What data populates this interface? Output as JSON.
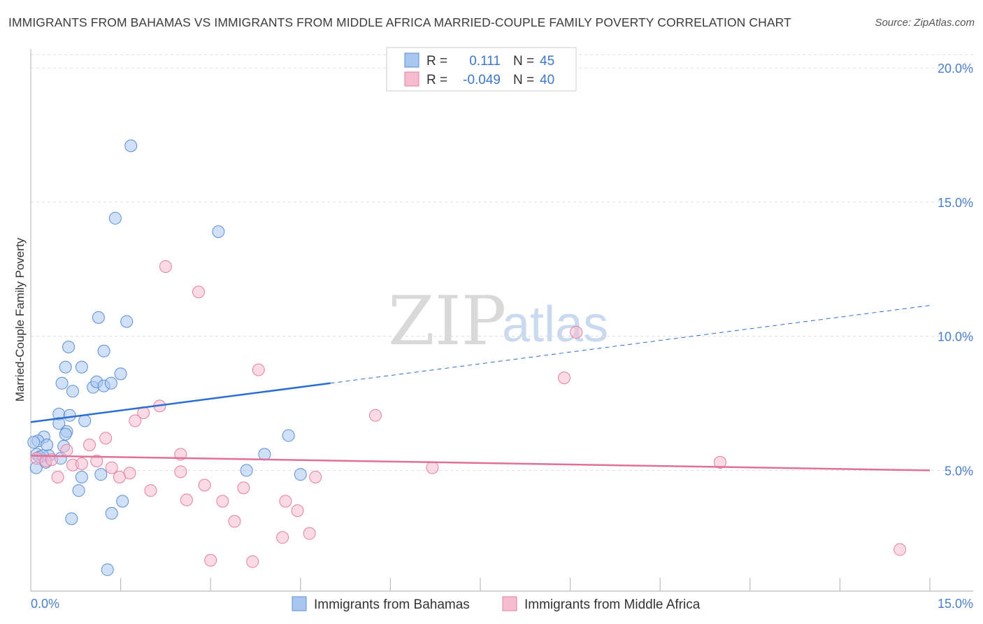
{
  "header": {
    "title": "IMMIGRANTS FROM BAHAMAS VS IMMIGRANTS FROM MIDDLE AFRICA MARRIED-COUPLE FAMILY POVERTY CORRELATION CHART",
    "source": "Source: ZipAtlas.com"
  },
  "watermark": {
    "zip": "ZIP",
    "atlas": "atlas"
  },
  "colors": {
    "blue_fill": "#a9c6ee",
    "blue_stroke": "#5b8fd6",
    "blue_line": "#2a6fd0",
    "pink_fill": "#f6bcd0",
    "pink_stroke": "#e57fa3",
    "pink_line": "#e0709a",
    "axis_label": "#4a7fc8",
    "grid": "#dddddd"
  },
  "legend": {
    "rows": [
      {
        "r_label": "R =",
        "r_value": "0.111",
        "n_label": "N =",
        "n_value": "45"
      },
      {
        "r_label": "R =",
        "r_value": "-0.049",
        "n_label": "N =",
        "n_value": "40"
      }
    ]
  },
  "bottom_legend": {
    "series1": "Immigrants from Bahamas",
    "series2": "Immigrants from Middle Africa"
  },
  "chart_data": {
    "type": "scatter",
    "title": "IMMIGRANTS FROM BAHAMAS VS IMMIGRANTS FROM MIDDLE AFRICA MARRIED-COUPLE FAMILY POVERTY CORRELATION CHART",
    "xlabel": "",
    "ylabel": "Married-Couple Family Poverty",
    "xlim": [
      0,
      15
    ],
    "ylim": [
      0.5,
      20.5
    ],
    "x_tick_labels": [
      "0.0%",
      "15.0%"
    ],
    "y_ticks": [
      5,
      10,
      15,
      20
    ],
    "y_tick_labels": [
      "5.0%",
      "10.0%",
      "15.0%",
      "20.0%"
    ],
    "series": [
      {
        "name": "Immigrants from Bahamas",
        "r": 0.111,
        "n": 45,
        "trend": {
          "x0": 0,
          "y0": 6.8,
          "x1": 5,
          "y1": 8.25,
          "x_dash_end": 15,
          "y_dash_end": 11.15
        },
        "points": [
          [
            1.67,
            17.1
          ],
          [
            1.41,
            14.4
          ],
          [
            3.13,
            13.9
          ],
          [
            1.13,
            10.7
          ],
          [
            1.6,
            10.55
          ],
          [
            0.63,
            9.6
          ],
          [
            1.22,
            9.45
          ],
          [
            0.58,
            8.85
          ],
          [
            0.85,
            8.85
          ],
          [
            1.5,
            8.6
          ],
          [
            0.52,
            8.25
          ],
          [
            1.04,
            8.1
          ],
          [
            1.1,
            8.3
          ],
          [
            1.22,
            8.15
          ],
          [
            1.34,
            8.25
          ],
          [
            0.7,
            7.95
          ],
          [
            0.47,
            7.1
          ],
          [
            0.65,
            7.05
          ],
          [
            0.9,
            6.85
          ],
          [
            0.47,
            6.75
          ],
          [
            0.6,
            6.45
          ],
          [
            0.58,
            6.35
          ],
          [
            0.22,
            6.25
          ],
          [
            0.12,
            6.1
          ],
          [
            0.05,
            6.05
          ],
          [
            0.27,
            5.95
          ],
          [
            0.55,
            5.9
          ],
          [
            4.3,
            6.3
          ],
          [
            0.1,
            5.6
          ],
          [
            0.3,
            5.55
          ],
          [
            0.5,
            5.45
          ],
          [
            0.15,
            5.5
          ],
          [
            3.9,
            5.6
          ],
          [
            3.6,
            5.0
          ],
          [
            0.09,
            5.1
          ],
          [
            0.85,
            4.75
          ],
          [
            1.17,
            4.85
          ],
          [
            4.5,
            4.85
          ],
          [
            0.8,
            4.25
          ],
          [
            1.53,
            3.85
          ],
          [
            1.35,
            3.4
          ],
          [
            0.68,
            3.2
          ],
          [
            1.28,
            1.3
          ],
          [
            0.2,
            5.55
          ],
          [
            0.25,
            5.3
          ]
        ]
      },
      {
        "name": "Immigrants from Middle Africa",
        "r": -0.049,
        "n": 40,
        "trend": {
          "x0": 0,
          "y0": 5.55,
          "x1": 15,
          "y1": 5.0
        },
        "points": [
          [
            2.25,
            12.6
          ],
          [
            2.8,
            11.65
          ],
          [
            9.1,
            10.15
          ],
          [
            3.8,
            8.75
          ],
          [
            8.9,
            8.45
          ],
          [
            5.75,
            7.05
          ],
          [
            2.15,
            7.4
          ],
          [
            1.88,
            7.15
          ],
          [
            1.74,
            6.85
          ],
          [
            1.25,
            6.2
          ],
          [
            0.98,
            5.95
          ],
          [
            0.6,
            5.75
          ],
          [
            2.5,
            5.6
          ],
          [
            1.1,
            5.35
          ],
          [
            0.1,
            5.45
          ],
          [
            0.25,
            5.35
          ],
          [
            0.35,
            5.4
          ],
          [
            0.7,
            5.2
          ],
          [
            0.85,
            5.25
          ],
          [
            1.35,
            5.1
          ],
          [
            1.65,
            4.9
          ],
          [
            1.48,
            4.75
          ],
          [
            2.5,
            4.95
          ],
          [
            0.45,
            4.75
          ],
          [
            11.5,
            5.3
          ],
          [
            6.7,
            5.1
          ],
          [
            4.75,
            4.75
          ],
          [
            2.9,
            4.45
          ],
          [
            3.55,
            4.35
          ],
          [
            2.0,
            4.25
          ],
          [
            2.6,
            3.9
          ],
          [
            3.2,
            3.85
          ],
          [
            4.25,
            3.85
          ],
          [
            4.45,
            3.5
          ],
          [
            3.4,
            3.1
          ],
          [
            4.65,
            2.65
          ],
          [
            4.2,
            2.5
          ],
          [
            3.0,
            1.65
          ],
          [
            3.7,
            1.6
          ],
          [
            14.5,
            2.05
          ]
        ]
      }
    ]
  }
}
